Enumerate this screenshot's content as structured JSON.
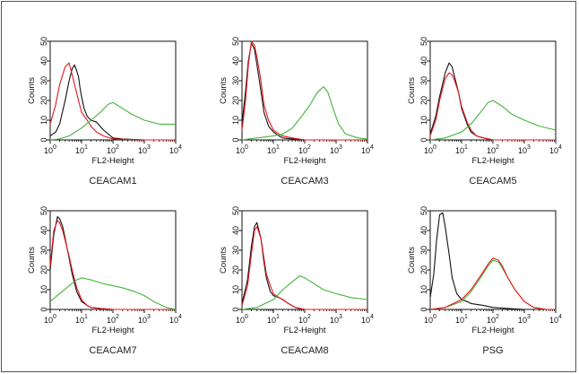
{
  "colors": {
    "black": "#111111",
    "red": "#e8151b",
    "green": "#44b43a"
  },
  "chart_data": [
    {
      "type": "line",
      "caption": "CEACAM1",
      "xlabel": "FL2-Height",
      "ylabel": "Counts",
      "xscale": "log",
      "xlim": [
        1,
        10000
      ],
      "ylim": [
        0,
        50
      ],
      "yticks": [
        0,
        10,
        20,
        30,
        40,
        50
      ],
      "xticks": [
        1,
        10,
        100,
        1000,
        10000
      ],
      "xtick_labels": [
        {
          "base": "10",
          "exp": "0"
        },
        {
          "base": "10",
          "exp": "1"
        },
        {
          "base": "10",
          "exp": "2"
        },
        {
          "base": "10",
          "exp": "3"
        },
        {
          "base": "10",
          "exp": "4"
        }
      ],
      "series": [
        {
          "color": "black",
          "x": [
            1,
            1.5,
            2,
            3,
            4,
            5,
            6,
            7,
            8,
            9,
            10,
            12,
            15,
            20,
            30,
            50,
            100,
            200,
            1000,
            10000
          ],
          "y": [
            2,
            4,
            8,
            20,
            30,
            36,
            38,
            35,
            32,
            26,
            22,
            16,
            12,
            10,
            9,
            5,
            1,
            0.5,
            0,
            0
          ]
        },
        {
          "color": "red",
          "x": [
            1,
            1.5,
            2,
            3,
            4,
            5,
            6,
            8,
            10,
            15,
            20,
            30,
            50,
            100,
            1000,
            10000
          ],
          "y": [
            8,
            18,
            28,
            37,
            39,
            33,
            28,
            20,
            14,
            10,
            7,
            4,
            2,
            0.5,
            0,
            0
          ]
        },
        {
          "color": "green",
          "x": [
            1,
            2,
            4,
            10,
            20,
            40,
            70,
            100,
            200,
            400,
            1000,
            3000,
            10000
          ],
          "y": [
            0,
            0.5,
            2,
            6,
            10,
            14,
            18,
            19,
            16,
            13,
            10,
            8,
            8
          ]
        }
      ]
    },
    {
      "type": "line",
      "caption": "CEACAM3",
      "xlabel": "FL2-Height",
      "ylabel": "Counts",
      "xscale": "log",
      "xlim": [
        1,
        10000
      ],
      "ylim": [
        0,
        50
      ],
      "yticks": [
        0,
        10,
        20,
        30,
        40,
        50
      ],
      "xticks": [
        1,
        10,
        100,
        1000,
        10000
      ],
      "xtick_labels": [
        {
          "base": "10",
          "exp": "0"
        },
        {
          "base": "10",
          "exp": "1"
        },
        {
          "base": "10",
          "exp": "2"
        },
        {
          "base": "10",
          "exp": "3"
        },
        {
          "base": "10",
          "exp": "4"
        }
      ],
      "series": [
        {
          "color": "black",
          "x": [
            1,
            1.3,
            1.6,
            2,
            2.5,
            3,
            4,
            5,
            7,
            10,
            15,
            20,
            40,
            100,
            1000,
            10000
          ],
          "y": [
            8,
            25,
            40,
            49,
            46,
            38,
            25,
            14,
            7,
            4,
            2,
            1,
            0.5,
            0,
            0,
            0
          ]
        },
        {
          "color": "red",
          "x": [
            1,
            1.3,
            1.6,
            2,
            2.5,
            3,
            4,
            5,
            7,
            10,
            15,
            20,
            40,
            100,
            1000,
            10000
          ],
          "y": [
            5,
            20,
            38,
            50,
            48,
            42,
            30,
            18,
            10,
            5,
            3,
            2,
            1,
            0,
            0,
            0
          ]
        },
        {
          "color": "green",
          "x": [
            1,
            3,
            10,
            20,
            40,
            80,
            150,
            250,
            400,
            550,
            800,
            1200,
            2000,
            5000,
            10000
          ],
          "y": [
            0,
            1,
            2,
            3,
            6,
            12,
            18,
            24,
            27,
            24,
            16,
            8,
            3,
            1,
            0.5
          ]
        }
      ]
    },
    {
      "type": "line",
      "caption": "CEACAM5",
      "xlabel": "FL2-Height",
      "ylabel": "Counts",
      "xscale": "log",
      "xlim": [
        1,
        10000
      ],
      "ylim": [
        0,
        50
      ],
      "yticks": [
        0,
        10,
        20,
        30,
        40,
        50
      ],
      "xticks": [
        1,
        10,
        100,
        1000,
        10000
      ],
      "xtick_labels": [
        {
          "base": "10",
          "exp": "0"
        },
        {
          "base": "10",
          "exp": "1"
        },
        {
          "base": "10",
          "exp": "2"
        },
        {
          "base": "10",
          "exp": "3"
        },
        {
          "base": "10",
          "exp": "4"
        }
      ],
      "series": [
        {
          "color": "black",
          "x": [
            1,
            1.5,
            2,
            3,
            4,
            5,
            6,
            8,
            10,
            15,
            20,
            30,
            50,
            100,
            1000,
            10000
          ],
          "y": [
            3,
            12,
            22,
            34,
            39,
            37,
            32,
            24,
            16,
            8,
            4,
            2,
            1,
            0,
            0,
            0
          ]
        },
        {
          "color": "red",
          "x": [
            1,
            1.5,
            2,
            3,
            4,
            5,
            6,
            8,
            10,
            15,
            20,
            30,
            50,
            100,
            1000,
            10000
          ],
          "y": [
            2,
            10,
            20,
            31,
            34,
            33,
            30,
            24,
            17,
            9,
            5,
            2,
            1,
            0,
            0,
            0
          ]
        },
        {
          "color": "green",
          "x": [
            1,
            3,
            10,
            20,
            40,
            70,
            100,
            200,
            400,
            1000,
            3000,
            10000
          ],
          "y": [
            0,
            1,
            4,
            8,
            14,
            19,
            20,
            17,
            13,
            10,
            7,
            5
          ]
        }
      ]
    },
    {
      "type": "line",
      "caption": "CEACAM7",
      "xlabel": "FL2-Height",
      "ylabel": "Counts",
      "xscale": "log",
      "xlim": [
        1,
        10000
      ],
      "ylim": [
        0,
        50
      ],
      "yticks": [
        0,
        10,
        20,
        30,
        40,
        50
      ],
      "xticks": [
        1,
        10,
        100,
        1000,
        10000
      ],
      "xtick_labels": [
        {
          "base": "10",
          "exp": "0"
        },
        {
          "base": "10",
          "exp": "1"
        },
        {
          "base": "10",
          "exp": "2"
        },
        {
          "base": "10",
          "exp": "3"
        },
        {
          "base": "10",
          "exp": "4"
        }
      ],
      "series": [
        {
          "color": "black",
          "x": [
            1,
            1.3,
            1.7,
            2,
            2.5,
            3,
            4,
            5,
            7,
            10,
            15,
            20,
            40,
            100,
            1000,
            10000
          ],
          "y": [
            20,
            38,
            47,
            46,
            42,
            36,
            26,
            18,
            9,
            4,
            2,
            1,
            0.5,
            0,
            0,
            0
          ]
        },
        {
          "color": "red",
          "x": [
            1,
            1.3,
            1.7,
            2,
            2.5,
            3,
            4,
            5,
            7,
            10,
            15,
            20,
            40,
            100,
            1000,
            10000
          ],
          "y": [
            22,
            40,
            45,
            44,
            40,
            35,
            27,
            20,
            11,
            5,
            2,
            1,
            0.5,
            0,
            0,
            0
          ]
        },
        {
          "color": "green",
          "x": [
            1,
            2,
            4,
            7,
            10,
            20,
            50,
            100,
            200,
            500,
            1000,
            2000,
            5000,
            10000
          ],
          "y": [
            4,
            8,
            12,
            15,
            16,
            15,
            13,
            12,
            11,
            9,
            7,
            4,
            1,
            0
          ]
        }
      ]
    },
    {
      "type": "line",
      "caption": "CEACAM8",
      "xlabel": "FL2-Height",
      "ylabel": "Counts",
      "xscale": "log",
      "xlim": [
        1,
        10000
      ],
      "ylim": [
        0,
        50
      ],
      "yticks": [
        0,
        10,
        20,
        30,
        40,
        50
      ],
      "xticks": [
        1,
        10,
        100,
        1000,
        10000
      ],
      "xtick_labels": [
        {
          "base": "10",
          "exp": "0"
        },
        {
          "base": "10",
          "exp": "1"
        },
        {
          "base": "10",
          "exp": "2"
        },
        {
          "base": "10",
          "exp": "3"
        },
        {
          "base": "10",
          "exp": "4"
        }
      ],
      "series": [
        {
          "color": "black",
          "x": [
            1,
            1.5,
            2,
            2.5,
            3,
            4,
            5,
            6,
            8,
            10,
            15,
            20,
            30,
            50,
            100,
            1000,
            10000
          ],
          "y": [
            3,
            15,
            32,
            42,
            44,
            36,
            24,
            16,
            9,
            7,
            6,
            5,
            3,
            1,
            0,
            0,
            0
          ]
        },
        {
          "color": "red",
          "x": [
            1,
            1.5,
            2,
            2.5,
            3,
            4,
            5,
            6,
            8,
            10,
            15,
            20,
            30,
            50,
            100,
            1000,
            10000
          ],
          "y": [
            2,
            12,
            28,
            40,
            42,
            36,
            26,
            18,
            12,
            8,
            6,
            5,
            3,
            1,
            0,
            0,
            0
          ]
        },
        {
          "color": "green",
          "x": [
            1,
            3,
            10,
            20,
            40,
            70,
            100,
            200,
            400,
            1000,
            3000,
            10000
          ],
          "y": [
            0,
            1,
            5,
            10,
            14,
            17,
            16,
            13,
            10,
            8,
            6,
            5
          ]
        }
      ]
    },
    {
      "type": "line",
      "caption": "PSG",
      "xlabel": "FL2-Height",
      "ylabel": "Counts",
      "xscale": "log",
      "xlim": [
        1,
        10000
      ],
      "ylim": [
        0,
        50
      ],
      "yticks": [
        0,
        10,
        20,
        30,
        40,
        50
      ],
      "xticks": [
        1,
        10,
        100,
        1000,
        10000
      ],
      "xtick_labels": [
        {
          "base": "10",
          "exp": "0"
        },
        {
          "base": "10",
          "exp": "1"
        },
        {
          "base": "10",
          "exp": "2"
        },
        {
          "base": "10",
          "exp": "3"
        },
        {
          "base": "10",
          "exp": "4"
        }
      ],
      "series": [
        {
          "color": "black",
          "x": [
            1,
            1.3,
            1.6,
            2,
            2.5,
            3,
            4,
            5,
            7,
            10,
            15,
            20,
            50,
            100,
            300,
            1000,
            10000
          ],
          "y": [
            6,
            18,
            35,
            48,
            49,
            42,
            28,
            16,
            8,
            5,
            4,
            3,
            2,
            1,
            0.5,
            0,
            0
          ]
        },
        {
          "color": "green",
          "x": [
            1,
            3,
            10,
            20,
            40,
            70,
            100,
            150,
            200,
            300,
            500,
            1000,
            2000,
            5000,
            10000
          ],
          "y": [
            0,
            1,
            4,
            9,
            16,
            22,
            25,
            24,
            21,
            16,
            10,
            4,
            1,
            0,
            0
          ]
        },
        {
          "color": "red",
          "x": [
            1,
            3,
            10,
            20,
            40,
            70,
            100,
            150,
            200,
            300,
            500,
            1000,
            2000,
            5000,
            10000
          ],
          "y": [
            0,
            1,
            5,
            10,
            17,
            23,
            26,
            25,
            22,
            16,
            10,
            4,
            1,
            0,
            0
          ]
        }
      ]
    }
  ]
}
